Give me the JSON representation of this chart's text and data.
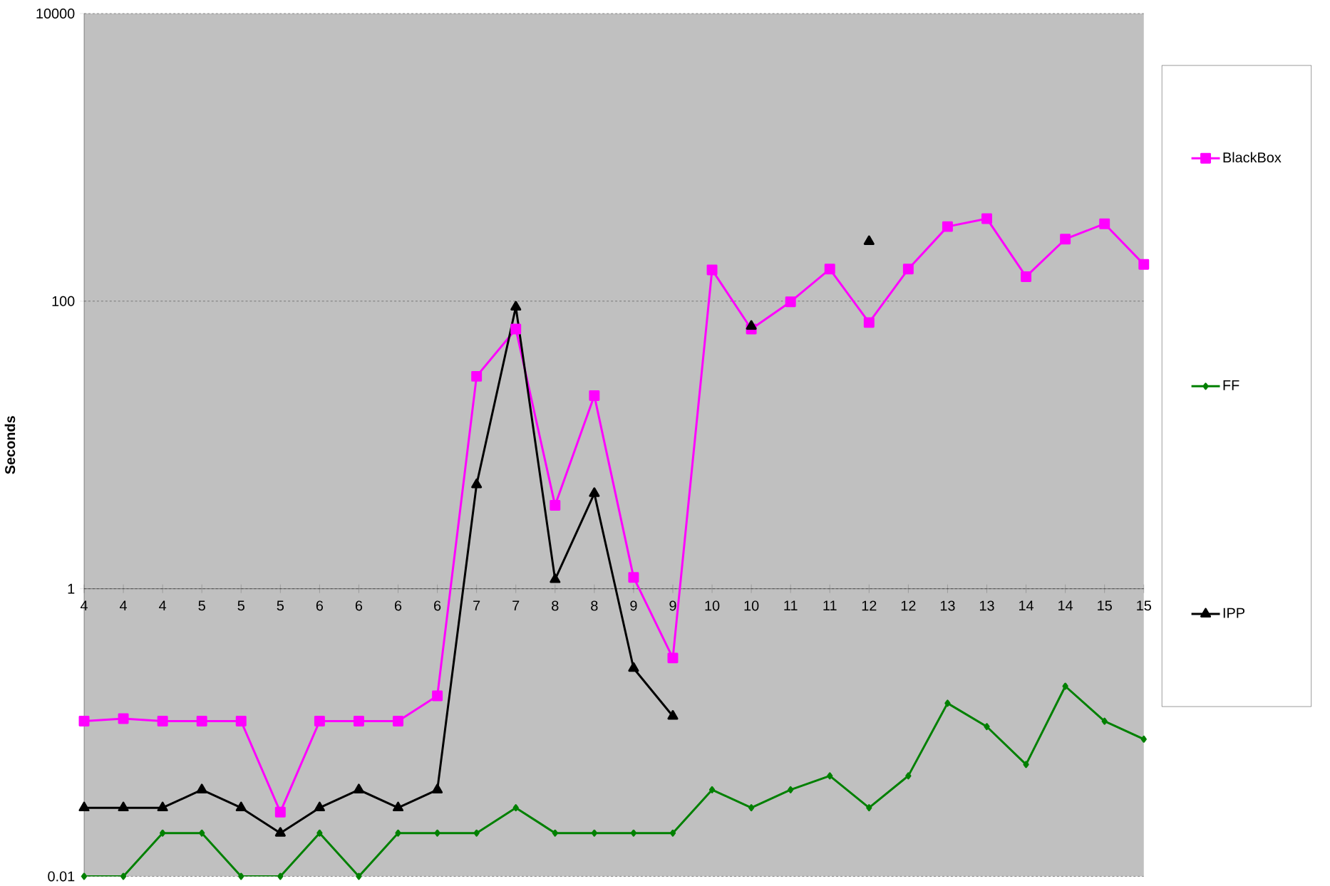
{
  "chart_data": {
    "type": "line",
    "ylabel": "Seconds",
    "categories": [
      "4",
      "4",
      "4",
      "5",
      "5",
      "5",
      "6",
      "6",
      "6",
      "6",
      "7",
      "7",
      "8",
      "8",
      "9",
      "9",
      "10",
      "10",
      "11",
      "11",
      "12",
      "12",
      "13",
      "13",
      "14",
      "14",
      "15",
      "15"
    ],
    "series": [
      {
        "name": "BlackBox",
        "color": "#ff00ff",
        "marker": "square",
        "values": [
          0.12,
          0.125,
          0.12,
          0.12,
          0.12,
          0.028,
          0.12,
          0.12,
          0.12,
          0.18,
          30,
          64,
          3.8,
          22,
          1.2,
          0.33,
          165,
          64,
          99,
          167,
          71,
          167,
          330,
          375,
          148,
          270,
          345,
          180
        ]
      },
      {
        "name": "FF",
        "color": "#008000",
        "marker": "diamond",
        "values": [
          0.01,
          0.01,
          0.02,
          0.02,
          0.01,
          0.01,
          0.02,
          0.01,
          0.02,
          0.02,
          0.02,
          0.03,
          0.02,
          0.02,
          0.02,
          0.02,
          0.04,
          0.03,
          0.04,
          0.05,
          0.03,
          0.05,
          0.16,
          0.11,
          0.06,
          0.21,
          0.12,
          0.09
        ]
      },
      {
        "name": "IPP",
        "color": "#000000",
        "marker": "triangle",
        "values": [
          0.03,
          0.03,
          0.03,
          0.04,
          0.03,
          0.02,
          0.03,
          0.04,
          0.03,
          0.04,
          5.3,
          91,
          1.16,
          4.6,
          0.28,
          0.13,
          null,
          67,
          null,
          null,
          260,
          null,
          null,
          null,
          null,
          null,
          null,
          null
        ]
      }
    ],
    "log": "y",
    "ylim": [
      0.01,
      10000
    ],
    "yticks": [
      0.01,
      1,
      100,
      10000
    ],
    "grid": "y",
    "legend": "right"
  }
}
